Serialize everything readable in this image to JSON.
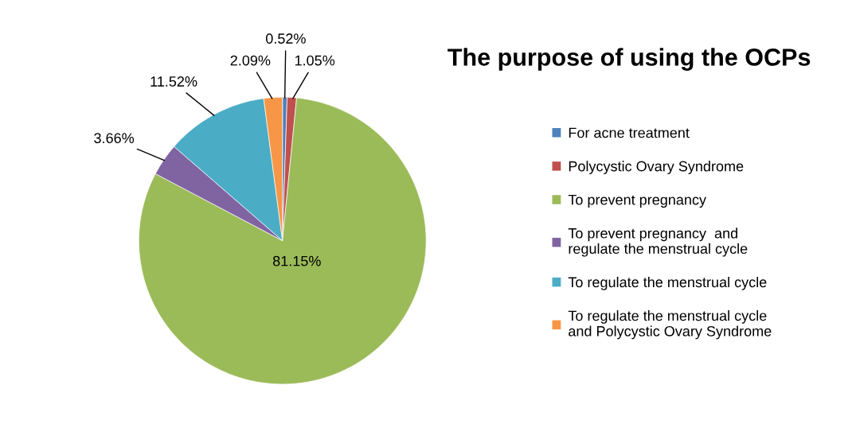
{
  "chart_data": {
    "type": "pie",
    "title": "The purpose of using the OCPs",
    "categories": [
      "For acne treatment",
      "Polycystic Ovary Syndrome",
      "To prevent pregnancy",
      "To prevent pregnancy  and\nregulate the menstrual cycle",
      "To regulate the menstrual cycle",
      "To regulate the menstrual cycle\nand Polycystic Ovary Syndrome"
    ],
    "values": [
      0.52,
      1.05,
      81.15,
      3.66,
      11.52,
      2.09
    ],
    "colors": [
      "#4f81bd",
      "#c0504d",
      "#9bbb59",
      "#8064a2",
      "#4bacc6",
      "#f79646"
    ],
    "value_labels": [
      "0.52%",
      "1.05%",
      "81.15%",
      "3.66%",
      "11.52%",
      "2.09%"
    ],
    "legend": "right"
  }
}
